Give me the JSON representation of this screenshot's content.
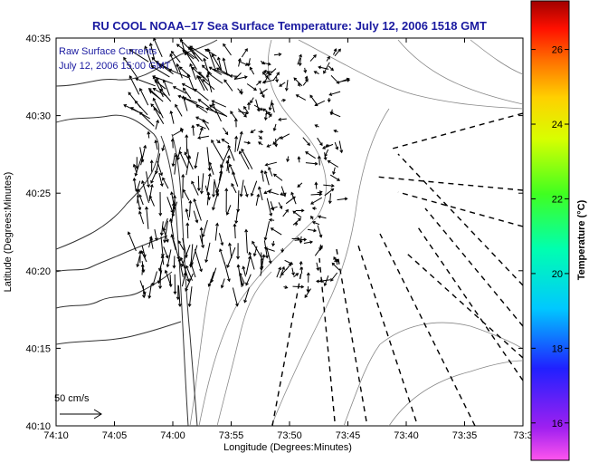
{
  "chart_data": {
    "type": "map",
    "title": "RU COOL  NOAA–17  Sea Surface Temperature:  July 12, 2006 1518 GMT",
    "xlabel": "Longitude (Degrees:Minutes)",
    "ylabel": "Latitude (Degrees:Minutes)",
    "x_ticks": [
      "74:10",
      "74:05",
      "74:00",
      "73:55",
      "73:50",
      "73:45",
      "73:40",
      "73:35",
      "73:3"
    ],
    "y_ticks": [
      "40:35",
      "40:30",
      "40:25",
      "40:20",
      "40:15",
      "40:10"
    ],
    "xlim_minutes_west": [
      10,
      -3
    ],
    "ylim_minutes_north": [
      10,
      35
    ],
    "legend_lines": [
      "Raw Surface Currents",
      "July 12, 2006 15:00 GMT"
    ],
    "scale_label": "50 cm/s",
    "colorbar": {
      "label": "Temperature (°C)",
      "ticks": [
        "26",
        "24",
        "22",
        "20",
        "18",
        "16"
      ],
      "range": [
        15,
        27.3
      ]
    },
    "data_markers": [
      {
        "lon_min_w": 59,
        "lat_min": 14.6
      },
      {
        "lon_min_w": 52.4,
        "lat_min": 13.5
      }
    ],
    "boxes": [
      {
        "corners": [
          [
            42.7,
            26
          ],
          [
            33,
            27
          ],
          [
            33,
            25.6
          ],
          [
            42.7,
            25.9
          ]
        ]
      },
      {
        "corners": [
          [
            45.6,
            22.3
          ],
          [
            33,
            14.8
          ],
          [
            33,
            11.3
          ],
          [
            44.6,
            22.8
          ]
        ]
      },
      {
        "corners": [
          [
            50,
            10
          ],
          [
            49.8,
            20.8
          ],
          [
            48.7,
            21
          ],
          [
            48.3,
            10
          ]
        ]
      }
    ]
  }
}
